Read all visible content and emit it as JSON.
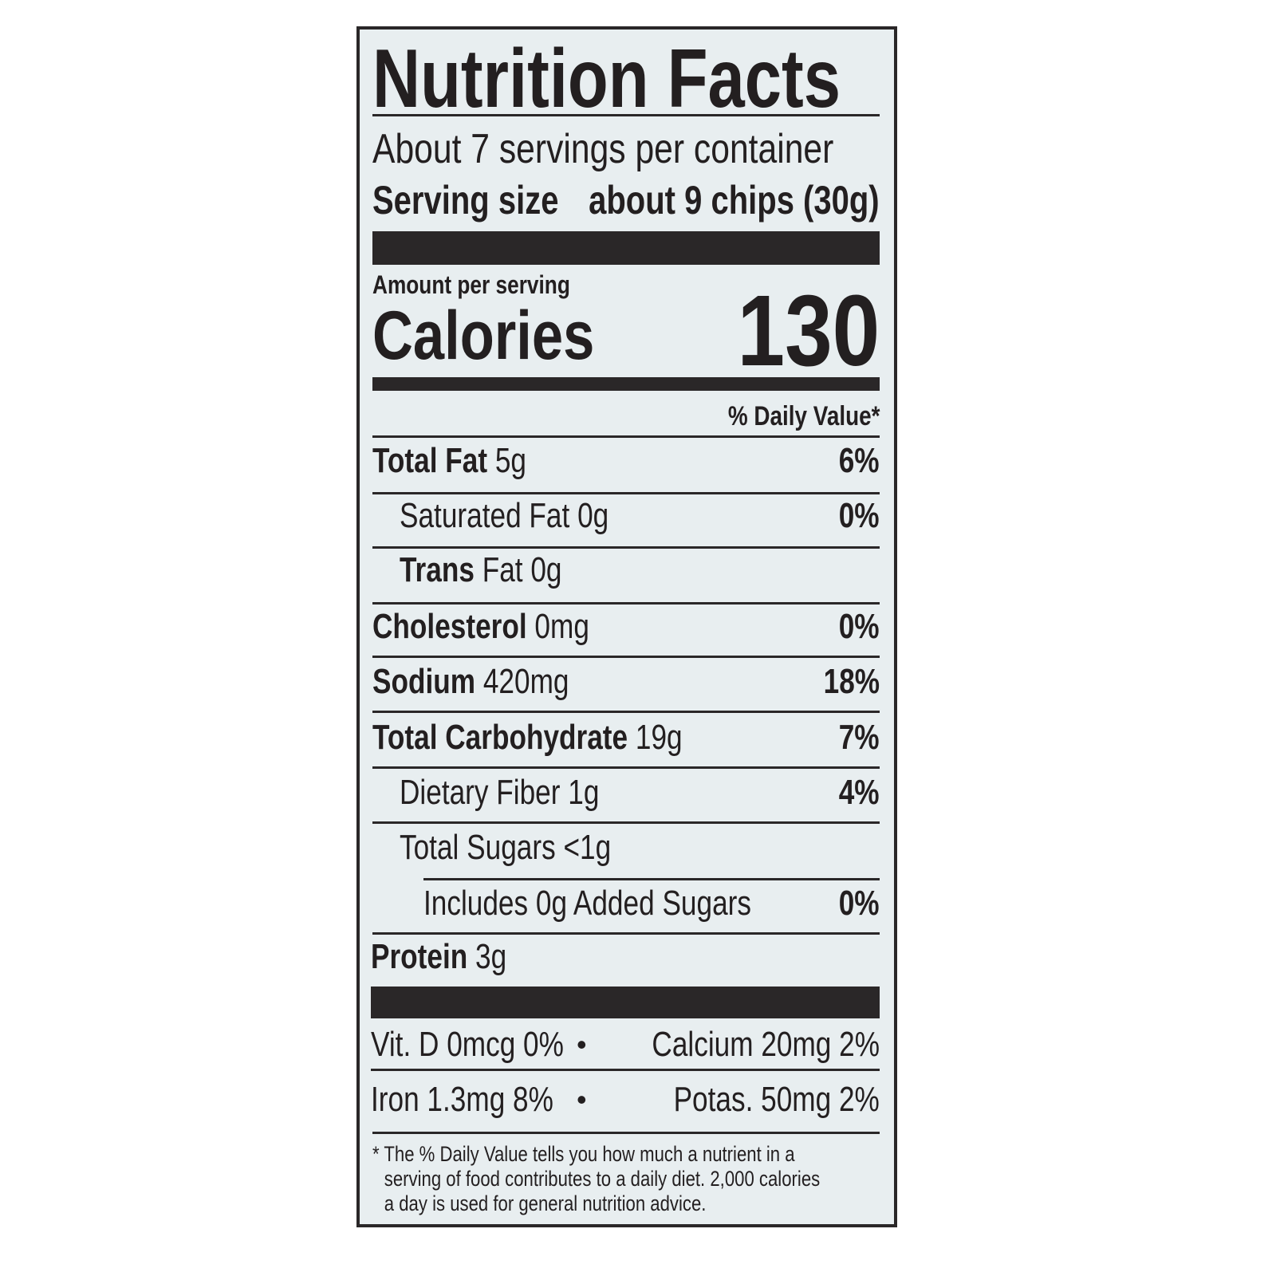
{
  "title": "Nutrition Facts",
  "servings_per_container": "About 7 servings per container",
  "serving_size": {
    "label": "Serving size",
    "value": "about 9 chips (30g)"
  },
  "amount_per_serving": "Amount per serving",
  "calories": {
    "label": "Calories",
    "value": "130"
  },
  "daily_value_header": "% Daily Value*",
  "nutrients": [
    {
      "name": "Total Fat",
      "amount": "5g",
      "dv": "6%",
      "indent": 0,
      "bold": true
    },
    {
      "name": "Saturated Fat",
      "amount": "0g",
      "dv": "0%",
      "indent": 1,
      "bold": false
    },
    {
      "name": "Trans",
      "name_rest": "Fat",
      "amount": "0g",
      "dv": "",
      "indent": 1,
      "bold": true
    },
    {
      "name": "Cholesterol",
      "amount": "0mg",
      "dv": "0%",
      "indent": 0,
      "bold": true
    },
    {
      "name": "Sodium",
      "amount": "420mg",
      "dv": "18%",
      "indent": 0,
      "bold": true
    },
    {
      "name": "Total Carbohydrate",
      "amount": "19g",
      "dv": "7%",
      "indent": 0,
      "bold": true
    },
    {
      "name": "Dietary Fiber",
      "amount": "1g",
      "dv": "4%",
      "indent": 1,
      "bold": false
    },
    {
      "name": "Total Sugars",
      "amount": "<1g",
      "dv": "",
      "indent": 1,
      "bold": false
    },
    {
      "name": "Includes 0g Added Sugars",
      "amount": "",
      "dv": "0%",
      "indent": 2,
      "bold": false
    },
    {
      "name": "Protein",
      "amount": "3g",
      "dv": "",
      "indent": 0,
      "bold": true
    }
  ],
  "micronutrients": [
    {
      "left": "Vit. D 0mcg 0%",
      "right": "Calcium 20mg 2%"
    },
    {
      "left": "Iron 1.3mg 8%",
      "right": "Potas. 50mg 2%"
    }
  ],
  "separator": "•",
  "footnote": [
    "* The % Daily Value tells you how much a nutrient in a",
    "serving of food contributes to a daily diet. 2,000 calories",
    "a day is used for general nutrition advice."
  ]
}
